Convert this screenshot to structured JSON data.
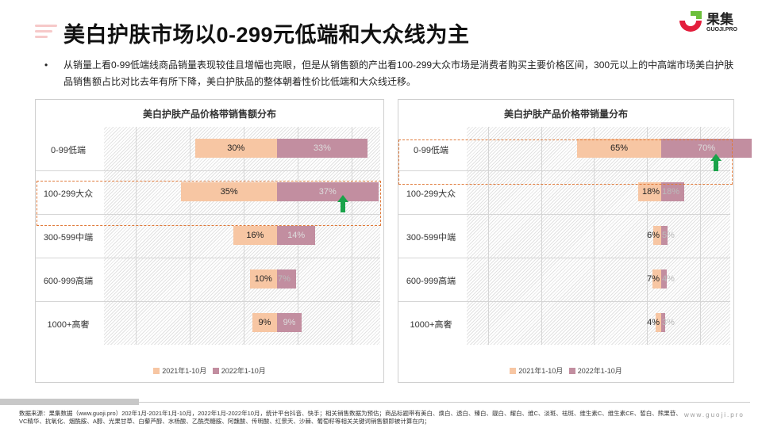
{
  "header": {
    "title": "美白护肤市场以0-299元低端和大众线为主",
    "logo_text": "果集",
    "logo_sub": "GUOJI.PRO"
  },
  "bullet": {
    "symbol": "•",
    "text": "从销量上看0-99低端线商品销量表现较佳且增幅也亮眼，但是从销售额的产出看100-299大众市场是消费者购买主要价格区间，300元以上的中高端市场美白护肤品销售额占比对比去年有所下降，美白护肤品的整体朝着性价比低端和大众线迁移。"
  },
  "colors": {
    "y2021": "#f7c6a3",
    "y2022": "#c28ea0",
    "highlight": "#e07a3a",
    "arrow": "#1aa34a"
  },
  "chart_data": [
    {
      "type": "bar",
      "title": "美白护肤产品价格带销售额分布",
      "categories": [
        "0-99低端",
        "100-299大众",
        "300-599中端",
        "600-999高端",
        "1000+高奢"
      ],
      "series": [
        {
          "name": "2021年1-10月",
          "values": [
            30,
            35,
            16,
            10,
            9
          ],
          "labels": [
            "30%",
            "35%",
            "16%",
            "10%",
            "9%"
          ]
        },
        {
          "name": "2022年1-10月",
          "values": [
            33,
            37,
            14,
            7,
            9
          ],
          "labels": [
            "33%",
            "37%",
            "14%",
            "7%",
            "9%"
          ]
        }
      ],
      "highlight": "100-299大众",
      "arrow": "up",
      "scale_max": 45
    },
    {
      "type": "bar",
      "title": "美白护肤产品价格带销量分布",
      "categories": [
        "0-99低端",
        "100-299大众",
        "300-599中端",
        "600-999高端",
        "1000+高奢"
      ],
      "series": [
        {
          "name": "2021年1-10月",
          "values": [
            65,
            18,
            6,
            7,
            4
          ],
          "labels": [
            "65%",
            "18%",
            "6%",
            "7%",
            "4%"
          ]
        },
        {
          "name": "2022年1-10月",
          "values": [
            70,
            18,
            5,
            4,
            3
          ],
          "labels": [
            "70%",
            "18%",
            "5%",
            "4%",
            "3%"
          ]
        }
      ],
      "highlight": "0-99低端",
      "arrow": "up",
      "scale_max": 95
    }
  ],
  "footer": {
    "source": "数据来源：果集数据（www.guoji.pro）202年1月-2021年1月-10月，2022年1月-2022年10月，统计平台抖音、快手；相关销售数据为预估；商品标题带有美白、焕白、透白、臻白、靓白、耀白、维C、淡斑、祛斑、维生素C、维生素CE、皙白、熊果苷、VC精华、抗氧化、烟酰胺、A醇、光果甘草、白藜芦醇、水杨酸、乙酰壳糖胺、阿魏酸、传明酸、红景天、沙棘、葡萄籽等相关关键词销售额即被计算在内；",
    "url": "www.guoji.pro"
  }
}
